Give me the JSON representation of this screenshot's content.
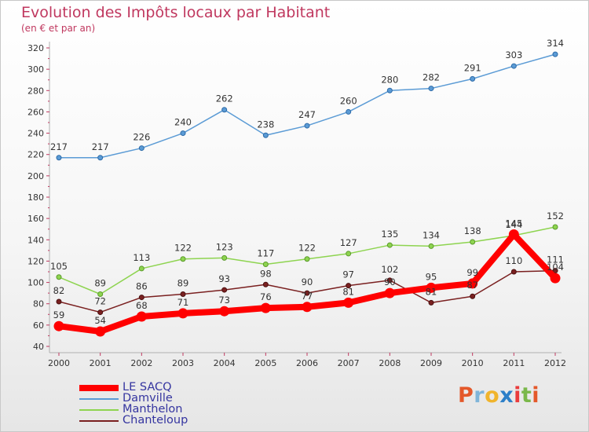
{
  "title": "Evolution des Impôts locaux par Habitant",
  "subtitle": "(en € et par an)",
  "logo_text": "Proxiti",
  "chart_data": {
    "type": "line",
    "title": "Evolution des Impôts locaux par Habitant",
    "subtitle": "(en € et par an)",
    "xlabel": "",
    "ylabel": "",
    "x": [
      "2000",
      "2001",
      "2002",
      "2003",
      "2004",
      "2005",
      "2006",
      "2007",
      "2008",
      "2009",
      "2010",
      "2011",
      "2012"
    ],
    "ylim": [
      40,
      320
    ],
    "yticks": [
      40,
      60,
      80,
      100,
      120,
      140,
      160,
      180,
      200,
      220,
      240,
      260,
      280,
      300,
      320
    ],
    "grid": false,
    "legend_position": "bottom-left",
    "series": [
      {
        "name": "LE SACQ",
        "color": "#ff0000",
        "values": [
          59,
          54,
          68,
          71,
          73,
          76,
          77,
          81,
          90,
          95,
          99,
          145,
          104
        ]
      },
      {
        "name": "Damville",
        "color": "#5b9bd5",
        "values": [
          217,
          217,
          226,
          240,
          262,
          238,
          247,
          260,
          280,
          282,
          291,
          303,
          314
        ]
      },
      {
        "name": "Manthelon",
        "color": "#8ed450",
        "values": [
          105,
          89,
          113,
          122,
          123,
          117,
          122,
          127,
          135,
          134,
          138,
          144,
          152
        ]
      },
      {
        "name": "Chanteloup",
        "color": "#7a2020",
        "values": [
          82,
          72,
          86,
          89,
          93,
          98,
          90,
          97,
          102,
          81,
          87,
          110,
          111
        ]
      }
    ]
  }
}
